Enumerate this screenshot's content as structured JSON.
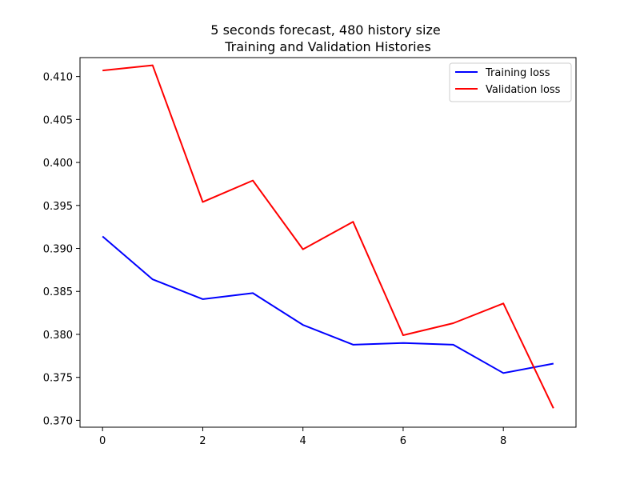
{
  "chart_data": {
    "type": "line",
    "title_lines": [
      "5 seconds forecast, 480 history size",
      "Training and Validation Histories"
    ],
    "xlabel": "",
    "ylabel": "",
    "xlim": [
      -0.45,
      9.45
    ],
    "ylim": [
      0.3692,
      0.4122
    ],
    "x_ticks": [
      0,
      2,
      4,
      6,
      8
    ],
    "y_ticks": [
      0.37,
      0.375,
      0.38,
      0.385,
      0.39,
      0.395,
      0.4,
      0.405,
      0.41
    ],
    "y_tick_labels": [
      "0.370",
      "0.375",
      "0.380",
      "0.385",
      "0.390",
      "0.395",
      "0.400",
      "0.405",
      "0.410"
    ],
    "x": [
      0,
      1,
      2,
      3,
      4,
      5,
      6,
      7,
      8,
      9
    ],
    "series": [
      {
        "name": "Training loss",
        "color": "#0000ff",
        "values": [
          0.3914,
          0.3864,
          0.3841,
          0.3848,
          0.3811,
          0.3788,
          0.379,
          0.3788,
          0.3755,
          0.3766
        ]
      },
      {
        "name": "Validation loss",
        "color": "#ff0000",
        "values": [
          0.4107,
          0.4113,
          0.3954,
          0.3979,
          0.3899,
          0.3931,
          0.3799,
          0.3813,
          0.3836,
          0.3714
        ]
      }
    ],
    "grid": false,
    "legend_position": "top-right"
  }
}
